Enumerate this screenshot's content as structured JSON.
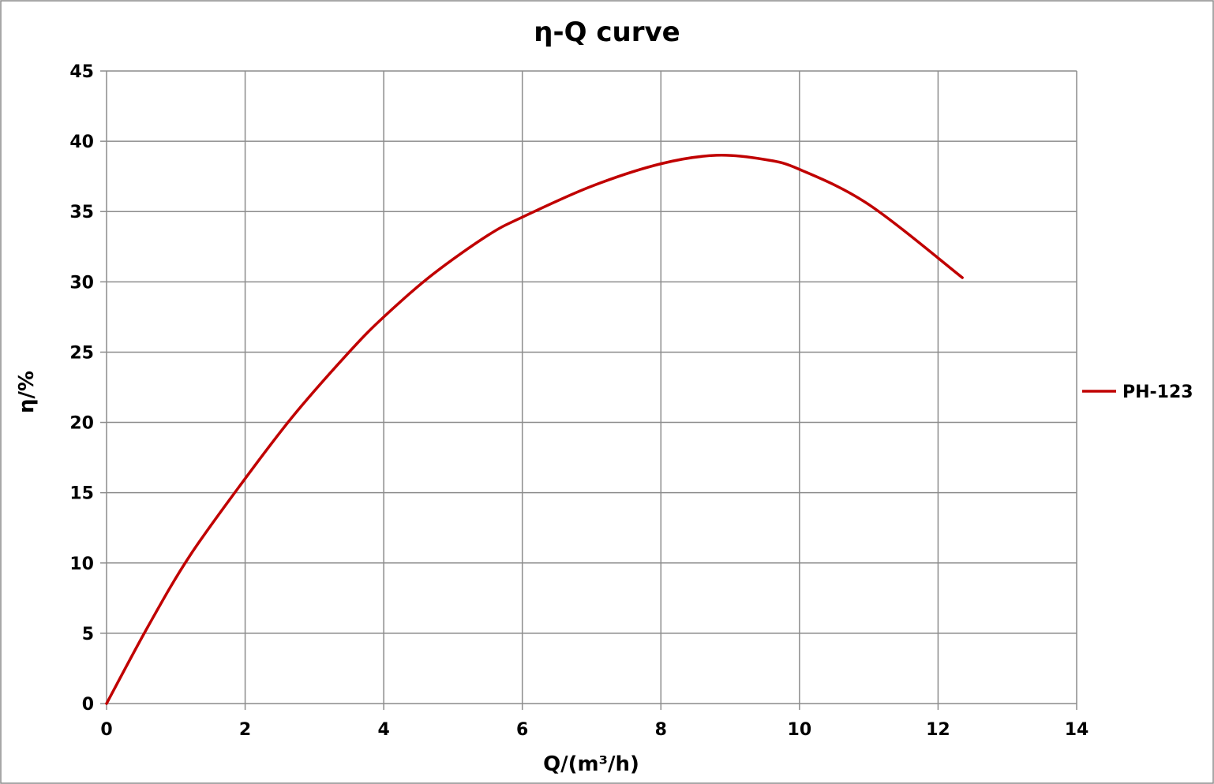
{
  "chart_data": {
    "type": "line",
    "title": "η-Q  curve",
    "xlabel": "Q/(m³/h)",
    "ylabel": "η/%",
    "xlim": [
      0,
      14
    ],
    "ylim": [
      0,
      45
    ],
    "x_ticks": [
      0,
      2,
      4,
      6,
      8,
      10,
      12,
      14
    ],
    "y_ticks": [
      0,
      5,
      10,
      15,
      20,
      25,
      30,
      35,
      40,
      45
    ],
    "grid": true,
    "legend_position": "right",
    "series": [
      {
        "name": "PH-123",
        "color": "#c00000",
        "x": [
          0,
          0.6,
          1.2,
          2.0,
          2.7,
          3.5,
          4.0,
          4.7,
          5.5,
          6.0,
          7.0,
          8.0,
          8.8,
          9.5,
          10.0,
          11.0,
          12.35
        ],
        "y": [
          0,
          5.5,
          10.5,
          16.0,
          20.5,
          25.0,
          27.5,
          30.5,
          33.3,
          34.6,
          36.8,
          38.4,
          39.0,
          38.7,
          38.0,
          35.5,
          30.3
        ]
      }
    ]
  }
}
